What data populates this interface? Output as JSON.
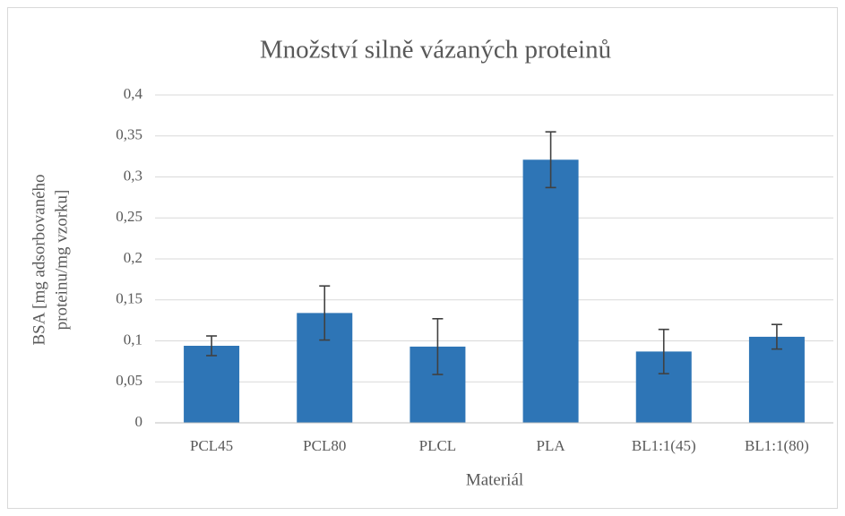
{
  "chart_data": {
    "type": "bar",
    "title": "Množství silně vázaných proteinů",
    "x_label": "Materiál",
    "y_label": [
      "BSA [mg adsorbovaného",
      "proteinu/mg vzorku]"
    ],
    "categories": [
      "PCL45",
      "PCL80",
      "PLCL",
      "PLA",
      "BL1:1(45)",
      "BL1:1(80)"
    ],
    "series": [
      {
        "color": "#2e75b6",
        "values": [
          0.094,
          0.134,
          0.093,
          0.321,
          0.087,
          0.105
        ],
        "errors": [
          0.012,
          0.033,
          0.034,
          0.034,
          0.027,
          0.015
        ]
      }
    ],
    "ylim": [
      0,
      0.4
    ],
    "yticks": [
      0,
      {
        "value": 0.05,
        "label": "0,05"
      },
      {
        "value": 0.1,
        "label": "0,1"
      },
      {
        "value": 0.15,
        "label": "0,15"
      },
      {
        "value": 0.2,
        "label": "0,2"
      },
      {
        "value": 0.25,
        "label": "0,25"
      },
      {
        "value": 0.3,
        "label": "0,3"
      },
      {
        "value": 0.35,
        "label": "0,35"
      },
      {
        "value": 0.4,
        "label": "0,4"
      }
    ],
    "grid": true
  }
}
